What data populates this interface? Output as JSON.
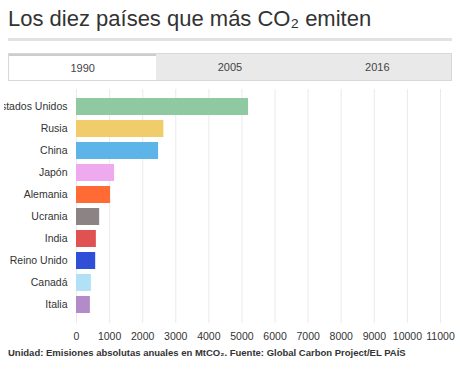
{
  "chart_data": {
    "type": "bar",
    "orientation": "horizontal",
    "title": "Los diez países que más CO₂ emiten",
    "tabs": [
      "1990",
      "2005",
      "2016"
    ],
    "active_tab": "1990",
    "categories": [
      "Estados Unidos",
      "Rusia",
      "China",
      "Japón",
      "Alemania",
      "Ucrania",
      "India",
      "Reino Unido",
      "Canadá",
      "Italia"
    ],
    "values": [
      5200,
      2640,
      2480,
      1150,
      1030,
      700,
      600,
      580,
      450,
      420
    ],
    "colors": [
      "#8ec9a2",
      "#f1cc6a",
      "#5cb4e8",
      "#efaaef",
      "#ff6a35",
      "#8c8484",
      "#e05252",
      "#2f4fd9",
      "#b0e1f6",
      "#b48bc9"
    ],
    "xlim": [
      0,
      11000
    ],
    "xticks": [
      0,
      1000,
      2000,
      3000,
      4000,
      5000,
      6000,
      7000,
      8000,
      9000,
      10000,
      11000
    ],
    "grid": true,
    "caption": "Unidad: Emisiones absolutas anuales en MtCO₂. Fuente: Global Carbon Project/EL PAÍS"
  }
}
